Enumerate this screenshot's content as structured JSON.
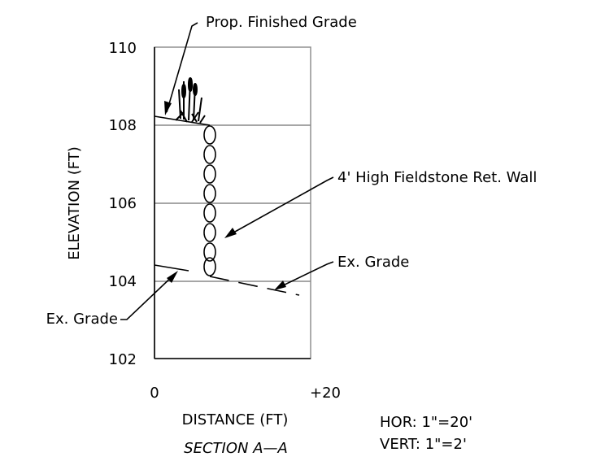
{
  "section": {
    "title": "SECTION  A—A",
    "y_axis_label": "ELEVATION (FT)",
    "x_axis_label": "DISTANCE (FT)",
    "y_tick_labels": [
      "110",
      "108",
      "106",
      "104",
      "102"
    ],
    "x_tick_labels": [
      "0",
      "+20"
    ],
    "annotations": {
      "proposed_grade": "Prop. Finished Grade",
      "wall": "4' High Fieldstone Ret. Wall",
      "existing_grade_right": "Ex. Grade",
      "existing_grade_left": "Ex. Grade"
    },
    "scale": {
      "horizontal": "HOR:  1\"=20'",
      "vertical": "VERT:  1\"=2'"
    }
  }
}
